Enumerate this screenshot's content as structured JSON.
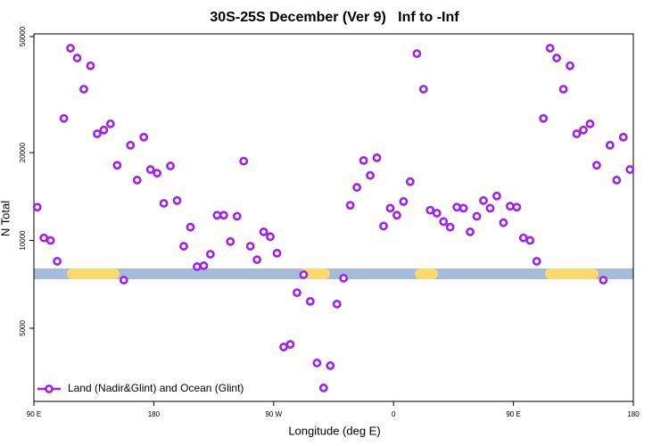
{
  "chart_data": {
    "type": "scatter",
    "title": "30S-25S December (Ver 9)   Inf to -Inf",
    "x_label": "Longitude (deg E)",
    "y_label": "N Total",
    "xlim": [
      90,
      540
    ],
    "xticks": [
      {
        "value": 90,
        "label": "90 E"
      },
      {
        "value": 180,
        "label": "180"
      },
      {
        "value": 270,
        "label": "90 W"
      },
      {
        "value": 360,
        "label": "0"
      },
      {
        "value": 450,
        "label": "90 E"
      },
      {
        "value": 540,
        "label": "180"
      }
    ],
    "ylim": [
      2806,
      51060
    ],
    "yticks": [
      5000,
      10000,
      20000,
      50000
    ],
    "log_y": true,
    "legend": "bottom-left",
    "series": [
      {
        "name": "Land (Nadir&Glint) and Ocean (Glint)",
        "color": "#a020f0",
        "x": [
          92.5,
          97.5,
          102.5,
          107.5,
          112.5,
          117.5,
          122.5,
          127.5,
          132.5,
          137.5,
          142.5,
          147.5,
          152.5,
          157.5,
          162.5,
          167.5,
          172.5,
          177.5,
          182.5,
          187.5,
          192.5,
          197.5,
          202.5,
          207.5,
          212.5,
          217.5,
          222.5,
          227.5,
          232.5,
          237.5,
          242.5,
          247.5,
          252.5,
          257.5,
          262.5,
          267.5,
          272.5,
          277.5,
          282.5,
          287.5,
          292.5,
          297.5,
          302.5,
          307.5,
          312.5,
          317.5,
          322.5,
          327.5,
          332.5,
          337.5,
          342.5,
          347.5,
          352.5,
          357.5,
          362.5,
          367.5,
          372.5,
          377.5,
          382.5,
          387.5,
          392.5,
          397.5,
          402.5,
          407.5,
          412.5,
          417.5,
          422.5,
          427.5,
          432.5,
          437.5,
          442.5,
          447.5,
          452.5,
          457.5,
          462.5,
          467.5,
          472.5,
          477.5,
          482.5,
          487.5,
          492.5,
          497.5,
          502.5,
          507.5,
          512.5,
          517.5,
          522.5,
          527.5,
          532.5,
          537.5
        ],
        "values": [
          13000,
          10200,
          10000,
          8480,
          26200,
          45600,
          42200,
          33000,
          39700,
          23200,
          23900,
          25100,
          18100,
          7310,
          21200,
          16100,
          22600,
          17500,
          17000,
          13400,
          18000,
          13700,
          9550,
          11100,
          8130,
          8190,
          8970,
          12200,
          12200,
          9910,
          12100,
          18700,
          9550,
          8590,
          10700,
          10300,
          9040,
          4310,
          4400,
          6620,
          7630,
          6180,
          3800,
          3120,
          3720,
          6050,
          7420,
          13200,
          15200,
          18800,
          16700,
          19200,
          11200,
          12900,
          12200,
          13600,
          15900,
          43700,
          33000,
          12700,
          12400,
          11600,
          11100,
          13000,
          12900,
          10700,
          12100,
          13700,
          12900,
          14200,
          11500,
          13100,
          13000,
          10200,
          10000,
          8480,
          26200,
          45600,
          42200,
          33000,
          39700,
          23200,
          23900,
          25100,
          18100,
          7310,
          21200,
          16100,
          22600,
          17500
        ]
      }
    ]
  }
}
